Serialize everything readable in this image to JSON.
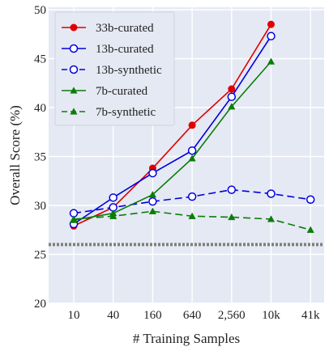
{
  "chart_data": {
    "type": "line",
    "xlabel": "# Training Samples",
    "ylabel": "Overall Score (%)",
    "categories": [
      "10",
      "40",
      "160",
      "640",
      "2,560",
      "10k",
      "41k"
    ],
    "yticks": [
      20,
      25,
      30,
      35,
      40,
      45,
      50
    ],
    "ylim": [
      20,
      50
    ],
    "grid": true,
    "legend_position": "top-left",
    "series": [
      {
        "name": "33b-curated",
        "color": "#e00000",
        "marker": "filled-circle",
        "dash": "solid",
        "values": [
          27.9,
          29.8,
          33.8,
          38.2,
          41.9,
          48.5,
          null
        ]
      },
      {
        "name": "13b-curated",
        "color": "#0000e0",
        "marker": "open-circle",
        "dash": "solid",
        "values": [
          28.1,
          30.8,
          33.3,
          35.6,
          41.1,
          47.3,
          null
        ]
      },
      {
        "name": "13b-synthetic",
        "color": "#0000e0",
        "marker": "open-circle",
        "dash": "dashed",
        "values": [
          29.2,
          29.8,
          30.4,
          30.9,
          31.6,
          31.2,
          30.6
        ]
      },
      {
        "name": "7b-curated",
        "color": "#0a7d0a",
        "marker": "triangle",
        "dash": "solid",
        "values": [
          28.5,
          29.2,
          31.1,
          34.8,
          40.1,
          44.7,
          null
        ]
      },
      {
        "name": "7b-synthetic",
        "color": "#0a7d0a",
        "marker": "triangle",
        "dash": "dashed",
        "values": [
          28.6,
          28.9,
          29.4,
          28.9,
          28.8,
          28.6,
          27.5
        ]
      }
    ],
    "reference_line": {
      "value": 26.0,
      "color": "#7f7f7f",
      "style": "dotted"
    }
  }
}
